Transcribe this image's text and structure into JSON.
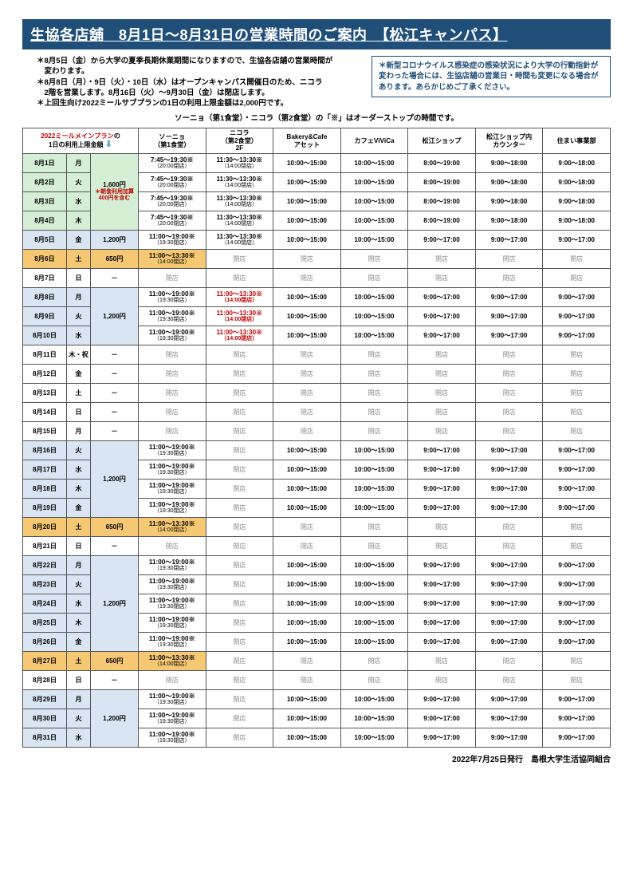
{
  "title": "生協各店舖　8月1日～8月31日の営業時間のご案内　【松江キャンパス】",
  "notice_left": "＊8月5日（金）から大学の夏季長期休業期間になりますので、生協各店舖の営業時間が\n　変わります。\n＊8月8日（月）・9日（火）・10日（水）はオープンキャンパス開催日のため、ニコラ\n　2階を営業します。8月16日（火）～9月30日（金）は閉店します。\n＊上回生向け2022ミールサブプランの1日の利用上限金額は2,000円です。",
  "notice_right": "＊新型コロナウイルス感染症の感染状況により大学の行動指針が変わった場合には、生協店舖の営業日・時間も変更になる場合があります。あらかじめご了承ください。",
  "subnote": "ソーニョ（第1食堂）・ニコラ（第2食堂）の「※」はオーダーストップの時間です。",
  "plan_header": {
    "l1": "2022ミールメインプラン",
    "l2": "の",
    "l3": "1日の利用上限金額"
  },
  "stores": [
    "ソーニョ\n（第1食堂）",
    "ニコラ\n（第2食堂）\n2F",
    "Bakery&Cafe\nアセット",
    "カフェViViCa",
    "松江ショップ",
    "松江ショップ内\nカウンター",
    "住まい事業部"
  ],
  "plan_span1": {
    "amount": "1,600円",
    "note": "＊朝食利用加算\n400円を含む"
  },
  "closed_label": "閉店",
  "footer": "2022年7月25日発行　島根大学生活協同組合",
  "rows": [
    {
      "date": "8月1日",
      "dow": "月",
      "bg": "green",
      "cells": [
        {
          "t": "7:45～19:30※",
          "s": "（20:00閉店）"
        },
        {
          "t": "11:30～13:30※",
          "s": "（14:00閉店）"
        },
        {
          "t": "10:00～15:00"
        },
        {
          "t": "10:00～15:00"
        },
        {
          "t": "8:00～19:00"
        },
        {
          "t": "9:00～18:00"
        },
        {
          "t": "9:00～18:00"
        }
      ]
    },
    {
      "date": "8月2日",
      "dow": "火",
      "bg": "green",
      "cells": [
        {
          "t": "7:45～19:30※",
          "s": "（20:00閉店）"
        },
        {
          "t": "11:30～13:30※",
          "s": "（14:00閉店）"
        },
        {
          "t": "10:00～15:00"
        },
        {
          "t": "10:00～15:00"
        },
        {
          "t": "8:00～19:00"
        },
        {
          "t": "9:00～18:00"
        },
        {
          "t": "9:00～18:00"
        }
      ]
    },
    {
      "date": "8月3日",
      "dow": "水",
      "bg": "green",
      "cells": [
        {
          "t": "7:45～19:30※",
          "s": "（20:00閉店）"
        },
        {
          "t": "11:30～13:30※",
          "s": "（14:00閉店）"
        },
        {
          "t": "10:00～15:00"
        },
        {
          "t": "10:00～15:00"
        },
        {
          "t": "8:00～19:00"
        },
        {
          "t": "9:00～18:00"
        },
        {
          "t": "9:00～18:00"
        }
      ]
    },
    {
      "date": "8月4日",
      "dow": "木",
      "bg": "green",
      "cells": [
        {
          "t": "7:45～19:30※",
          "s": "（20:00閉店）"
        },
        {
          "t": "11:30～13:30※",
          "s": "（14:00閉店）"
        },
        {
          "t": "10:00～15:00"
        },
        {
          "t": "10:00～15:00"
        },
        {
          "t": "8:00～19:00"
        },
        {
          "t": "9:00～18:00"
        },
        {
          "t": "9:00～18:00"
        }
      ]
    },
    {
      "date": "8月5日",
      "dow": "金",
      "bg": "blue",
      "plan": "1,200円",
      "cells": [
        {
          "t": "11:00～19:00※",
          "s": "（19:30閉店）"
        },
        {
          "t": "11:30～13:30※",
          "s": "（14:00閉店）"
        },
        {
          "t": "10:00～15:00"
        },
        {
          "t": "10:00～15:00"
        },
        {
          "t": "9:00～17:00"
        },
        {
          "t": "9:00～17:00"
        },
        {
          "t": "9:00～17:00"
        }
      ]
    },
    {
      "date": "8月6日",
      "dow": "土",
      "bg": "yellow",
      "plan": "650円",
      "cells": [
        {
          "t": "11:00～13:30※",
          "s": "（14:00閉店）",
          "hl": true
        },
        {
          "c": true
        },
        {
          "c": true
        },
        {
          "c": true
        },
        {
          "c": true
        },
        {
          "c": true
        },
        {
          "c": true
        }
      ]
    },
    {
      "date": "8月7日",
      "dow": "日",
      "plan": "－",
      "cells": [
        {
          "c": true
        },
        {
          "c": true
        },
        {
          "c": true
        },
        {
          "c": true
        },
        {
          "c": true
        },
        {
          "c": true
        },
        {
          "c": true
        }
      ]
    },
    {
      "date": "8月8日",
      "dow": "月",
      "bg": "blue",
      "planspan": 3,
      "plan": "1,200円",
      "cells": [
        {
          "t": "11:00～19:00※",
          "s": "（19:30閉店）"
        },
        {
          "t": "11:00～13:30※",
          "s": "（14:00閉店）",
          "red": true
        },
        {
          "t": "10:00～15:00"
        },
        {
          "t": "10:00～15:00"
        },
        {
          "t": "9:00～17:00"
        },
        {
          "t": "9:00～17:00"
        },
        {
          "t": "9:00～17:00"
        }
      ]
    },
    {
      "date": "8月9日",
      "dow": "火",
      "bg": "blue",
      "noplan": true,
      "cells": [
        {
          "t": "11:00～19:00※",
          "s": "（19:30閉店）"
        },
        {
          "t": "11:00～13:30※",
          "s": "（14:00閉店）",
          "red": true
        },
        {
          "t": "10:00～15:00"
        },
        {
          "t": "10:00～15:00"
        },
        {
          "t": "9:00～17:00"
        },
        {
          "t": "9:00～17:00"
        },
        {
          "t": "9:00～17:00"
        }
      ]
    },
    {
      "date": "8月10日",
      "dow": "水",
      "bg": "blue",
      "noplan": true,
      "cells": [
        {
          "t": "11:00～19:00※",
          "s": "（19:30閉店）"
        },
        {
          "t": "11:00～13:30※",
          "s": "（14:00閉店）",
          "red": true
        },
        {
          "t": "10:00～15:00"
        },
        {
          "t": "10:00～15:00"
        },
        {
          "t": "9:00～17:00"
        },
        {
          "t": "9:00～17:00"
        },
        {
          "t": "9:00～17:00"
        }
      ]
    },
    {
      "date": "8月11日",
      "dow": "木・祝",
      "plan": "－",
      "cells": [
        {
          "c": true
        },
        {
          "c": true
        },
        {
          "c": true
        },
        {
          "c": true
        },
        {
          "c": true
        },
        {
          "c": true
        },
        {
          "c": true
        }
      ]
    },
    {
      "date": "8月12日",
      "dow": "金",
      "plan": "－",
      "cells": [
        {
          "c": true
        },
        {
          "c": true
        },
        {
          "c": true
        },
        {
          "c": true
        },
        {
          "c": true
        },
        {
          "c": true
        },
        {
          "c": true
        }
      ]
    },
    {
      "date": "8月13日",
      "dow": "土",
      "plan": "－",
      "cells": [
        {
          "c": true
        },
        {
          "c": true
        },
        {
          "c": true
        },
        {
          "c": true
        },
        {
          "c": true
        },
        {
          "c": true
        },
        {
          "c": true
        }
      ]
    },
    {
      "date": "8月14日",
      "dow": "日",
      "plan": "－",
      "cells": [
        {
          "c": true
        },
        {
          "c": true
        },
        {
          "c": true
        },
        {
          "c": true
        },
        {
          "c": true
        },
        {
          "c": true
        },
        {
          "c": true
        }
      ]
    },
    {
      "date": "8月15日",
      "dow": "月",
      "plan": "－",
      "cells": [
        {
          "c": true
        },
        {
          "c": true
        },
        {
          "c": true
        },
        {
          "c": true
        },
        {
          "c": true
        },
        {
          "c": true
        },
        {
          "c": true
        }
      ]
    },
    {
      "date": "8月16日",
      "dow": "火",
      "bg": "blue",
      "planspan": 4,
      "plan": "1,200円",
      "cells": [
        {
          "t": "11:00～19:00※",
          "s": "（19:30閉店）"
        },
        {
          "c": true
        },
        {
          "t": "10:00～15:00"
        },
        {
          "t": "10:00～15:00"
        },
        {
          "t": "9:00～17:00"
        },
        {
          "t": "9:00～17:00"
        },
        {
          "t": "9:00～17:00"
        }
      ]
    },
    {
      "date": "8月17日",
      "dow": "水",
      "bg": "blue",
      "noplan": true,
      "cells": [
        {
          "t": "11:00～19:00※",
          "s": "（19:30閉店）"
        },
        {
          "c": true
        },
        {
          "t": "10:00～15:00"
        },
        {
          "t": "10:00～15:00"
        },
        {
          "t": "9:00～17:00"
        },
        {
          "t": "9:00～17:00"
        },
        {
          "t": "9:00～17:00"
        }
      ]
    },
    {
      "date": "8月18日",
      "dow": "木",
      "bg": "blue",
      "noplan": true,
      "cells": [
        {
          "t": "11:00～19:00※",
          "s": "（19:30閉店）"
        },
        {
          "c": true
        },
        {
          "t": "10:00～15:00"
        },
        {
          "t": "10:00～15:00"
        },
        {
          "t": "9:00～17:00"
        },
        {
          "t": "9:00～17:00"
        },
        {
          "t": "9:00～17:00"
        }
      ]
    },
    {
      "date": "8月19日",
      "dow": "金",
      "bg": "blue",
      "noplan": true,
      "cells": [
        {
          "t": "11:00～19:00※",
          "s": "（19:30閉店）"
        },
        {
          "c": true
        },
        {
          "t": "10:00～15:00"
        },
        {
          "t": "10:00～15:00"
        },
        {
          "t": "9:00～17:00"
        },
        {
          "t": "9:00～17:00"
        },
        {
          "t": "9:00～17:00"
        }
      ]
    },
    {
      "date": "8月20日",
      "dow": "土",
      "bg": "yellow",
      "plan": "650円",
      "cells": [
        {
          "t": "11:00～13:30※",
          "s": "（14:00閉店）",
          "hl": true
        },
        {
          "c": true
        },
        {
          "c": true
        },
        {
          "c": true
        },
        {
          "c": true
        },
        {
          "c": true
        },
        {
          "c": true
        }
      ]
    },
    {
      "date": "8月21日",
      "dow": "日",
      "plan": "－",
      "cells": [
        {
          "c": true
        },
        {
          "c": true
        },
        {
          "c": true
        },
        {
          "c": true
        },
        {
          "c": true
        },
        {
          "c": true
        },
        {
          "c": true
        }
      ]
    },
    {
      "date": "8月22日",
      "dow": "月",
      "bg": "blue",
      "planspan": 5,
      "plan": "1,200円",
      "cells": [
        {
          "t": "11:00～19:00※",
          "s": "（19:30閉店）"
        },
        {
          "c": true
        },
        {
          "t": "10:00～15:00"
        },
        {
          "t": "10:00～15:00"
        },
        {
          "t": "9:00～17:00"
        },
        {
          "t": "9:00～17:00"
        },
        {
          "t": "9:00～17:00"
        }
      ]
    },
    {
      "date": "8月23日",
      "dow": "火",
      "bg": "blue",
      "noplan": true,
      "cells": [
        {
          "t": "11:00～19:00※",
          "s": "（19:30閉店）"
        },
        {
          "c": true
        },
        {
          "t": "10:00～15:00"
        },
        {
          "t": "10:00～15:00"
        },
        {
          "t": "9:00～17:00"
        },
        {
          "t": "9:00～17:00"
        },
        {
          "t": "9:00～17:00"
        }
      ]
    },
    {
      "date": "8月24日",
      "dow": "水",
      "bg": "blue",
      "noplan": true,
      "cells": [
        {
          "t": "11:00～19:00※",
          "s": "（19:30閉店）"
        },
        {
          "c": true
        },
        {
          "t": "10:00～15:00"
        },
        {
          "t": "10:00～15:00"
        },
        {
          "t": "9:00～17:00"
        },
        {
          "t": "9:00～17:00"
        },
        {
          "t": "9:00～17:00"
        }
      ]
    },
    {
      "date": "8月25日",
      "dow": "木",
      "bg": "blue",
      "noplan": true,
      "cells": [
        {
          "t": "11:00～19:00※",
          "s": "（19:30閉店）"
        },
        {
          "c": true
        },
        {
          "t": "10:00～15:00"
        },
        {
          "t": "10:00～15:00"
        },
        {
          "t": "9:00～17:00"
        },
        {
          "t": "9:00～17:00"
        },
        {
          "t": "9:00～17:00"
        }
      ]
    },
    {
      "date": "8月26日",
      "dow": "金",
      "bg": "blue",
      "noplan": true,
      "cells": [
        {
          "t": "11:00～19:00※",
          "s": "（19:30閉店）"
        },
        {
          "c": true
        },
        {
          "t": "10:00～15:00"
        },
        {
          "t": "10:00～15:00"
        },
        {
          "t": "9:00～17:00"
        },
        {
          "t": "9:00～17:00"
        },
        {
          "t": "9:00～17:00"
        }
      ]
    },
    {
      "date": "8月27日",
      "dow": "土",
      "bg": "yellow",
      "plan": "650円",
      "cells": [
        {
          "t": "11:00～13:30※",
          "s": "（14:00閉店）",
          "hl": true
        },
        {
          "c": true
        },
        {
          "c": true
        },
        {
          "c": true
        },
        {
          "c": true
        },
        {
          "c": true
        },
        {
          "c": true
        }
      ]
    },
    {
      "date": "8月28日",
      "dow": "日",
      "plan": "－",
      "cells": [
        {
          "c": true
        },
        {
          "c": true
        },
        {
          "c": true
        },
        {
          "c": true
        },
        {
          "c": true
        },
        {
          "c": true
        },
        {
          "c": true
        }
      ]
    },
    {
      "date": "8月29日",
      "dow": "月",
      "bg": "blue",
      "planspan": 3,
      "plan": "1,200円",
      "cells": [
        {
          "t": "11:00～19:00※",
          "s": "（19:30閉店）"
        },
        {
          "c": true
        },
        {
          "t": "10:00～15:00"
        },
        {
          "t": "10:00～15:00"
        },
        {
          "t": "9:00～17:00"
        },
        {
          "t": "9:00～17:00"
        },
        {
          "t": "9:00～17:00"
        }
      ]
    },
    {
      "date": "8月30日",
      "dow": "火",
      "bg": "blue",
      "noplan": true,
      "cells": [
        {
          "t": "11:00～19:00※",
          "s": "（19:30閉店）"
        },
        {
          "c": true
        },
        {
          "t": "10:00～15:00"
        },
        {
          "t": "10:00～15:00"
        },
        {
          "t": "9:00～17:00"
        },
        {
          "t": "9:00～17:00"
        },
        {
          "t": "9:00～17:00"
        }
      ]
    },
    {
      "date": "8月31日",
      "dow": "水",
      "bg": "blue",
      "noplan": true,
      "cells": [
        {
          "t": "11:00～19:00※",
          "s": "（19:30閉店）"
        },
        {
          "c": true
        },
        {
          "t": "10:00～15:00"
        },
        {
          "t": "10:00～15:00"
        },
        {
          "t": "9:00～17:00"
        },
        {
          "t": "9:00～17:00"
        },
        {
          "t": "9:00～17:00"
        }
      ]
    }
  ]
}
